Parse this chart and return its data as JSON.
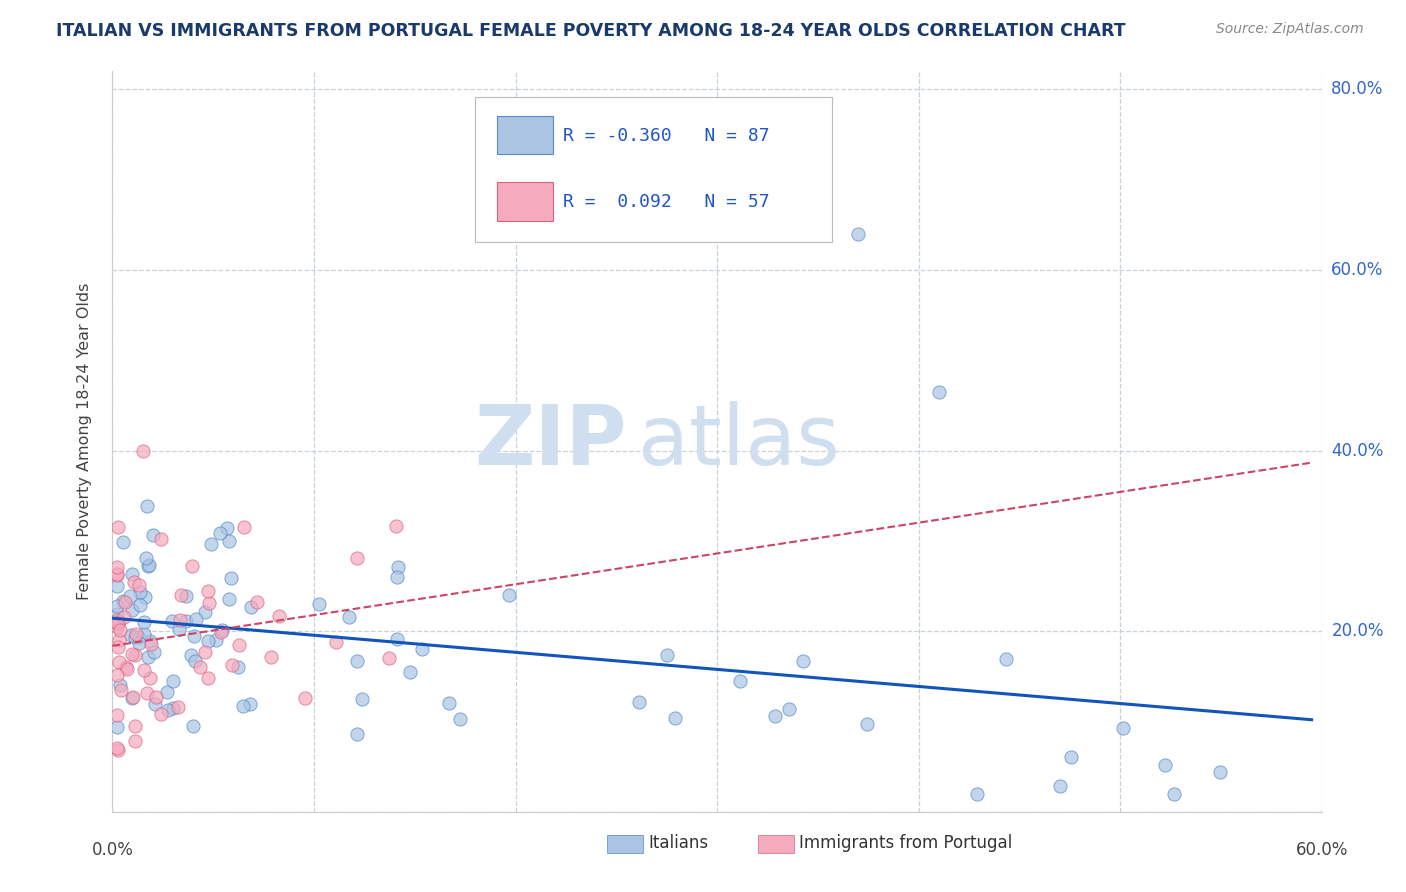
{
  "title": "ITALIAN VS IMMIGRANTS FROM PORTUGAL FEMALE POVERTY AMONG 18-24 YEAR OLDS CORRELATION CHART",
  "source": "Source: ZipAtlas.com",
  "ylabel": "Female Poverty Among 18-24 Year Olds",
  "xlim": [
    0.0,
    0.6
  ],
  "ylim": [
    0.0,
    0.82
  ],
  "xticks": [
    0.0,
    0.1,
    0.2,
    0.3,
    0.4,
    0.5,
    0.6
  ],
  "xticklabels": [
    "0.0%",
    "",
    "",
    "",
    "",
    "",
    "60.0%"
  ],
  "yticks": [
    0.0,
    0.2,
    0.4,
    0.6,
    0.8
  ],
  "yticklabels": [
    "",
    "20.0%",
    "40.0%",
    "60.0%",
    "80.0%"
  ],
  "italian_R": -0.36,
  "italian_N": 87,
  "portugal_R": 0.092,
  "portugal_N": 57,
  "italian_color": "#aac4e2",
  "portugal_color": "#f5aabe",
  "italian_edge_color": "#5588cc",
  "portugal_edge_color": "#e06080",
  "italian_line_color": "#1155bb",
  "portugal_line_color": "#cc4466",
  "watermark_zip": "ZIP",
  "watermark_atlas": "atlas",
  "watermark_color": "#d0dff0",
  "background_color": "#ffffff",
  "grid_color": "#c8d0d8",
  "title_color": "#1a3a6b",
  "source_color": "#888888",
  "legend_R_color": "#2255cc",
  "legend_N_color": "#222222"
}
